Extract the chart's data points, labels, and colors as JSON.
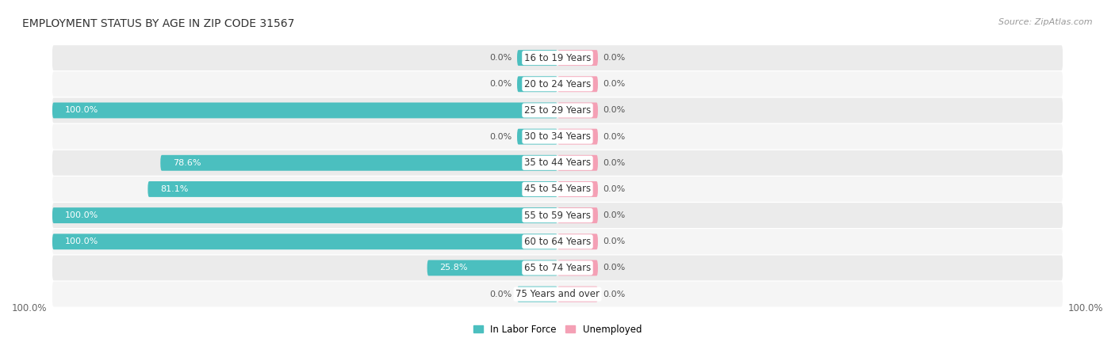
{
  "title": "EMPLOYMENT STATUS BY AGE IN ZIP CODE 31567",
  "source": "Source: ZipAtlas.com",
  "categories": [
    "16 to 19 Years",
    "20 to 24 Years",
    "25 to 29 Years",
    "30 to 34 Years",
    "35 to 44 Years",
    "45 to 54 Years",
    "55 to 59 Years",
    "60 to 64 Years",
    "65 to 74 Years",
    "75 Years and over"
  ],
  "in_labor_force": [
    0.0,
    0.0,
    100.0,
    0.0,
    78.6,
    81.1,
    100.0,
    100.0,
    25.8,
    0.0
  ],
  "unemployed": [
    0.0,
    0.0,
    0.0,
    0.0,
    0.0,
    0.0,
    0.0,
    0.0,
    0.0,
    0.0
  ],
  "labor_color": "#4BBFBF",
  "unemployed_color": "#F4A0B5",
  "row_bg_dark": "#EBEBEB",
  "row_bg_light": "#F5F5F5",
  "title_fontsize": 10,
  "source_fontsize": 8,
  "bar_label_fontsize": 8,
  "cat_label_fontsize": 8.5,
  "axis_label_left": "100.0%",
  "axis_label_right": "100.0%",
  "max_value": 100.0,
  "min_bar_display": 8.0
}
